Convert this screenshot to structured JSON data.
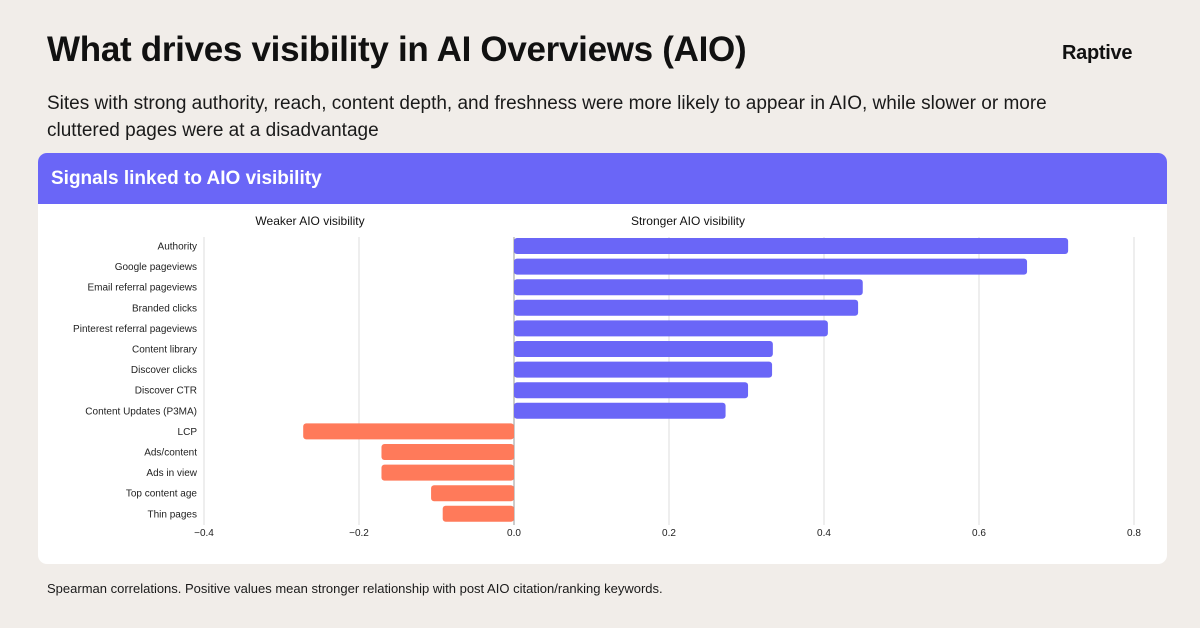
{
  "header": {
    "title": "What drives visibility in AI Overviews (AIO)",
    "brand": "Raptive",
    "subtitle": "Sites with strong authority, reach, content depth, and freshness were more likely to appear in AIO, while slower or more cluttered pages were at a disadvantage"
  },
  "card": {
    "title": "Signals linked to AIO visibility"
  },
  "footnote": "Spearman correlations. Positive values mean stronger relationship with post AIO citation/ranking keywords.",
  "colors": {
    "positive": "#6a66f7",
    "negative": "#ff7a5a",
    "header": "#6a66f7"
  },
  "chart_data": {
    "type": "bar",
    "orientation": "horizontal",
    "title": "Signals linked to AIO visibility",
    "annotations": [
      "Weaker AIO visibility",
      "Stronger AIO visibility"
    ],
    "categories": [
      "Authority",
      "Google pageviews",
      "Email referral pageviews",
      "Branded clicks",
      "Pinterest referral pageviews",
      "Content library",
      "Discover clicks",
      "Discover CTR",
      "Content Updates (P3MA)",
      "LCP",
      "Ads/content",
      "Ads in view",
      "Top content age",
      "Thin pages"
    ],
    "values": [
      0.715,
      0.662,
      0.45,
      0.444,
      0.405,
      0.334,
      0.333,
      0.302,
      0.273,
      -0.272,
      -0.171,
      -0.171,
      -0.107,
      -0.092
    ],
    "xlim": [
      -0.4,
      0.8
    ],
    "xticks": [
      "−0.4",
      "−0.2",
      "0.0",
      "0.2",
      "0.4",
      "0.6",
      "0.8"
    ],
    "grid": true
  }
}
